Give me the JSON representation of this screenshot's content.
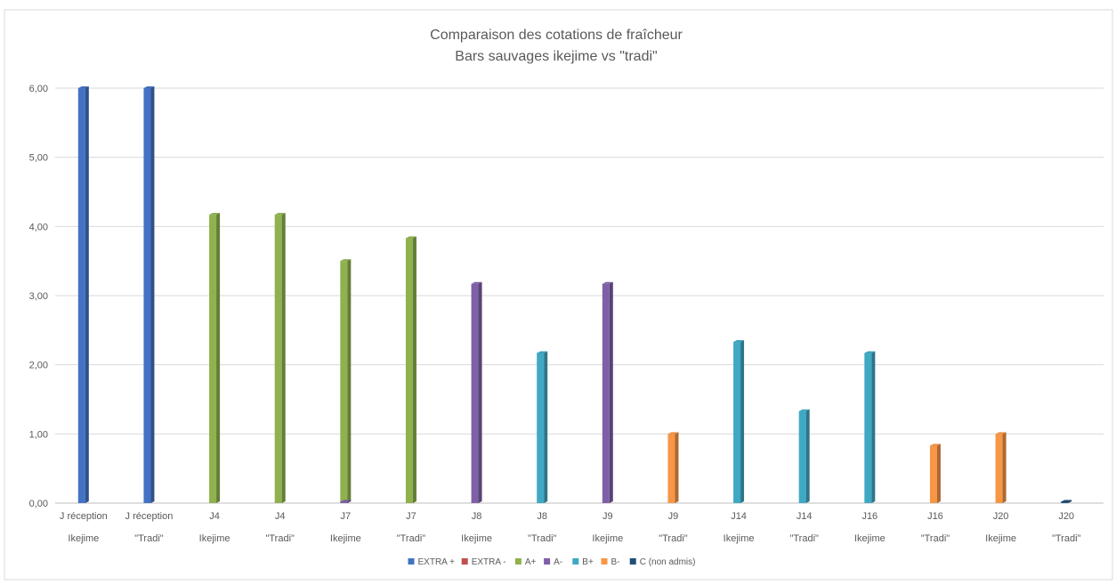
{
  "chart_data": {
    "type": "bar",
    "title": "Comparaison des cotations de fraîcheur",
    "subtitle": "Bars sauvages ikejime vs \"tradi\"",
    "xlabel": "",
    "ylabel": "",
    "ylim": [
      0,
      6
    ],
    "yticks": [
      "0,00",
      "1,00",
      "2,00",
      "3,00",
      "4,00",
      "5,00",
      "6,00"
    ],
    "grid": true,
    "legend_position": "bottom",
    "categories": [
      [
        "J réception",
        "Ikejime"
      ],
      [
        "J réception",
        "\"Tradi\""
      ],
      [
        "J4",
        "Ikejime"
      ],
      [
        "J4",
        "\"Tradi\""
      ],
      [
        "J7",
        "Ikejime"
      ],
      [
        "J7",
        "\"Tradi\""
      ],
      [
        "J8",
        "Ikejime"
      ],
      [
        "J8",
        "\"Tradi\""
      ],
      [
        "J9",
        "Ikejime"
      ],
      [
        "J9",
        "\"Tradi\""
      ],
      [
        "J14",
        "Ikejime"
      ],
      [
        "J14",
        "\"Tradi\""
      ],
      [
        "J16",
        "Ikejime"
      ],
      [
        "J16",
        "\"Tradi\""
      ],
      [
        "J20",
        "Ikejime"
      ],
      [
        "J20",
        "\"Tradi\""
      ]
    ],
    "series": [
      {
        "name": "EXTRA +",
        "color": "#4472c4",
        "values": [
          6,
          6,
          0,
          0,
          0,
          0,
          0,
          0,
          0,
          0,
          0,
          0,
          0,
          0,
          0,
          0
        ]
      },
      {
        "name": "EXTRA -",
        "color": "#c0504d",
        "values": [
          0,
          0,
          0,
          0,
          0,
          0,
          0,
          0,
          0,
          0,
          0,
          0,
          0,
          0,
          0,
          0
        ]
      },
      {
        "name": "A+",
        "color": "#8fb24e",
        "values": [
          0,
          0,
          4.17,
          4.17,
          3.5,
          3.83,
          0,
          0,
          0,
          0,
          0,
          0,
          0,
          0,
          0,
          0
        ]
      },
      {
        "name": "A-",
        "color": "#7f60a8",
        "values": [
          0,
          0,
          0,
          0,
          0.02,
          0,
          3.17,
          0,
          3.17,
          0,
          0,
          0,
          0,
          0,
          0,
          0
        ]
      },
      {
        "name": "B+",
        "color": "#3fa9c4",
        "values": [
          0,
          0,
          0,
          0,
          0,
          0,
          0,
          2.17,
          0,
          0,
          2.33,
          1.33,
          2.17,
          0,
          0,
          0
        ]
      },
      {
        "name": "B-",
        "color": "#f79646",
        "values": [
          0,
          0,
          0,
          0,
          0,
          0,
          0,
          0,
          0,
          1.0,
          0,
          0,
          0,
          0.83,
          1.0,
          0
        ]
      },
      {
        "name": "C (non admis)",
        "color": "#1f4e79",
        "values": [
          0,
          0,
          0,
          0,
          0,
          0,
          0,
          0,
          0,
          0,
          0,
          0,
          0,
          0,
          0,
          0.02
        ]
      }
    ]
  }
}
